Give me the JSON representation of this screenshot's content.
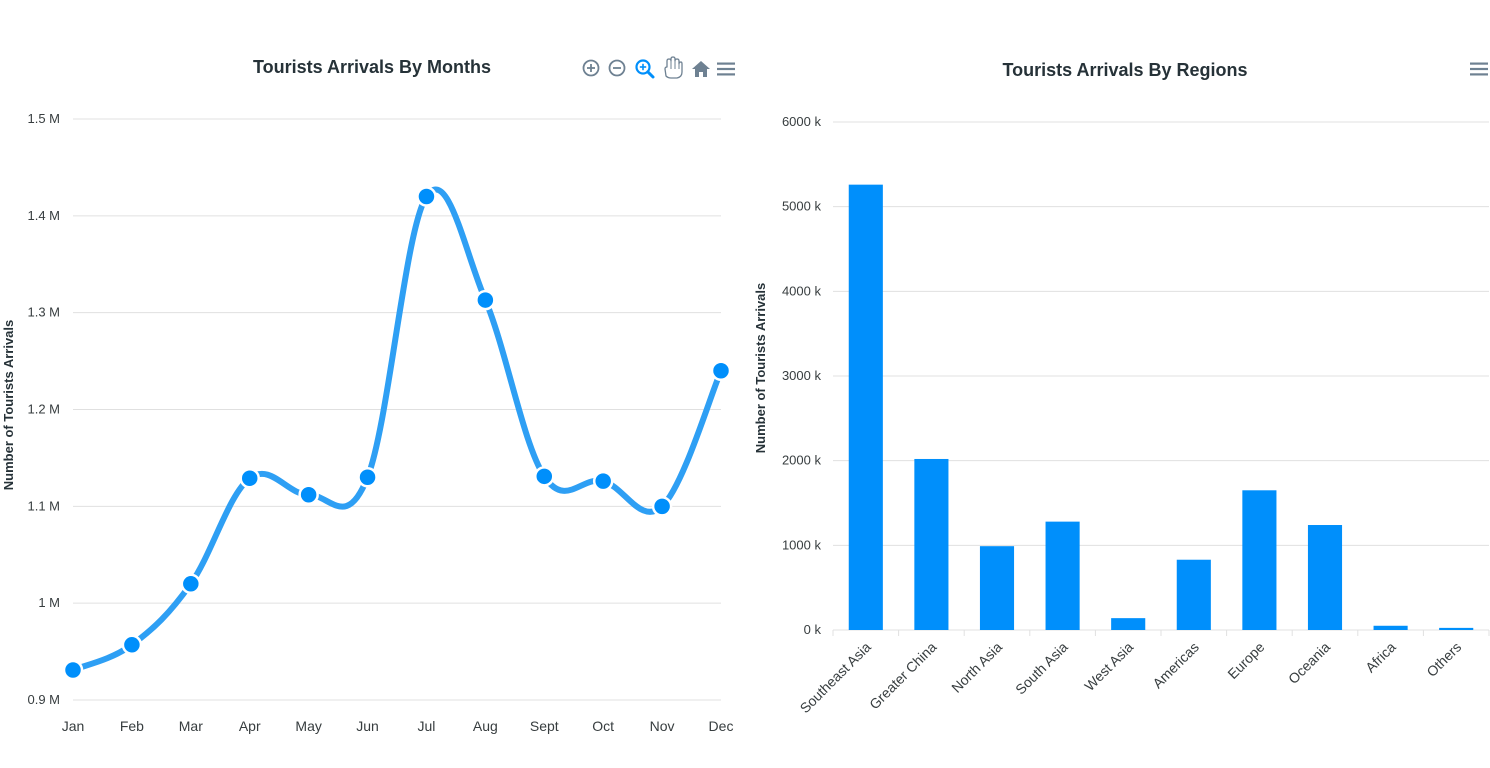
{
  "colors": {
    "accent": "#008ffb",
    "line": "#2e9ff4",
    "grid": "#e0e0e0",
    "icon": "#6e8192",
    "icon_active": "#008ffb"
  },
  "toolbar_left": [
    "zoom-in-icon",
    "zoom-out-icon",
    "selection-zoom-icon",
    "pan-icon",
    "reset-home-icon",
    "menu-icon"
  ],
  "toolbar_right": [
    "menu-icon"
  ],
  "chart_data": [
    {
      "type": "line",
      "title": "Tourists Arrivals By Months",
      "xlabel": "",
      "ylabel": "Number of Tourists Arrivals",
      "categories": [
        "Jan",
        "Feb",
        "Mar",
        "Apr",
        "May",
        "Jun",
        "Jul",
        "Aug",
        "Sept",
        "Oct",
        "Nov",
        "Dec"
      ],
      "values": [
        931000,
        957000,
        1020000,
        1129000,
        1112000,
        1130000,
        1420000,
        1313000,
        1131000,
        1126000,
        1100000,
        1240000
      ],
      "ylim": [
        900000,
        1500000
      ],
      "yticks": [
        900000,
        1000000,
        1100000,
        1200000,
        1300000,
        1400000,
        1500000
      ],
      "ytick_labels": [
        "0.9 M",
        "1 M",
        "1.1 M",
        "1.2 M",
        "1.3 M",
        "1.4 M",
        "1.5 M"
      ],
      "curve": "smooth",
      "markers": true,
      "grid": true
    },
    {
      "type": "bar",
      "title": "Tourists Arrivals By Regions",
      "xlabel": "",
      "ylabel": "Number of Tourists Arrivals",
      "categories": [
        "Southeast Asia",
        "Greater China",
        "North Asia",
        "South Asia",
        "West Asia",
        "Americas",
        "Europe",
        "Oceania",
        "Africa",
        "Others"
      ],
      "values": [
        5260000,
        2020000,
        990000,
        1280000,
        140000,
        830000,
        1650000,
        1240000,
        50000,
        25000
      ],
      "ylim": [
        0,
        6000000
      ],
      "yticks": [
        0,
        1000000,
        2000000,
        3000000,
        4000000,
        5000000,
        6000000
      ],
      "ytick_labels": [
        "0 k",
        "1000 k",
        "2000 k",
        "3000 k",
        "4000 k",
        "5000 k",
        "6000 k"
      ],
      "grid": true
    }
  ]
}
